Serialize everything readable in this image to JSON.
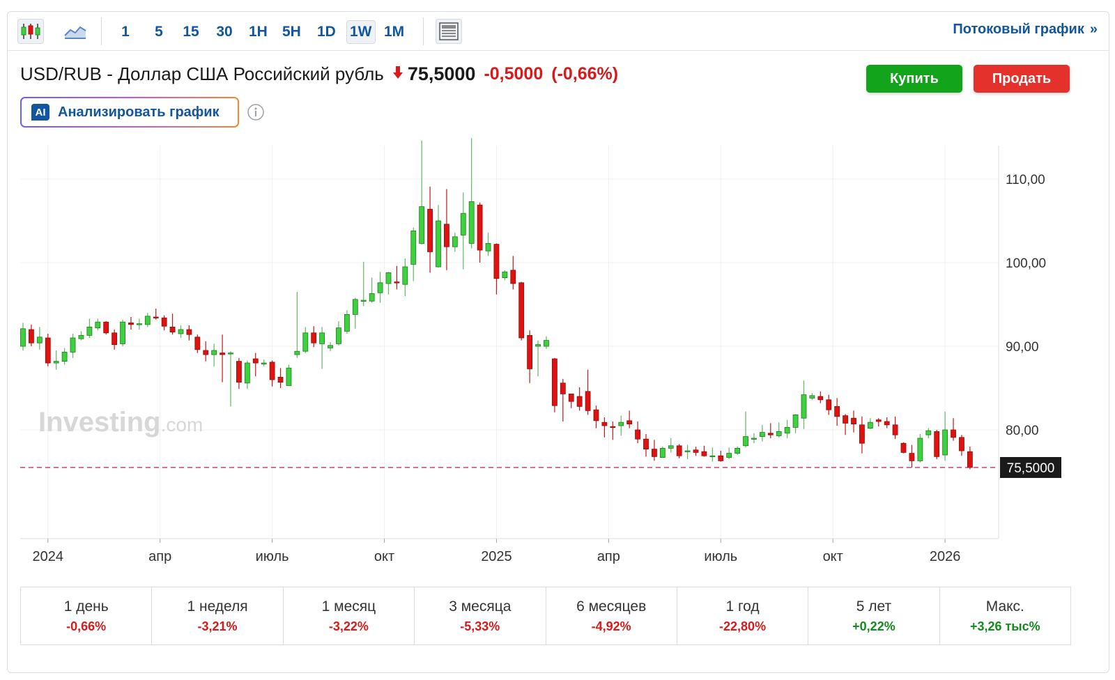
{
  "toolbar": {
    "chart_type_icons": [
      "candlestick-icon",
      "area-chart-icon"
    ],
    "intervals": [
      "1",
      "5",
      "15",
      "30",
      "1H",
      "5H",
      "1D",
      "1W",
      "1M"
    ],
    "active_interval": "1W",
    "layout_icon": "layout-icon",
    "streaming_label": "Потоковый график",
    "streaming_arrow": "»"
  },
  "header": {
    "title": "USD/RUB - Доллар США Российский рубль",
    "last_price": "75,5000",
    "change": "-0,5000",
    "change_pct": "(-0,66%)",
    "buy_label": "Купить",
    "sell_label": "Продать",
    "ai_badge": "AI",
    "ai_label": "Анализировать график",
    "colors": {
      "negative": "#d91a1a",
      "positive": "#138a1d",
      "buy": "#12a51c",
      "sell": "#e5312b",
      "link": "#1256a0"
    }
  },
  "chart_data": {
    "type": "candlestick",
    "interval": "1W",
    "watermark": "Investing",
    "watermark_suffix": ".com",
    "current_price_label": "75,5000",
    "current_price": 75.5,
    "ylim": [
      67.0,
      114.0
    ],
    "y_ticks": [
      {
        "value": 110,
        "label": "110,00"
      },
      {
        "value": 100,
        "label": "100,00"
      },
      {
        "value": 90,
        "label": "90,00"
      },
      {
        "value": 80,
        "label": "80,00"
      }
    ],
    "x_ticks": [
      {
        "idx": 3,
        "label": "2024"
      },
      {
        "idx": 16.5,
        "label": "апр"
      },
      {
        "idx": 30,
        "label": "июль"
      },
      {
        "idx": 43.5,
        "label": "окт"
      },
      {
        "idx": 57,
        "label": "2025"
      },
      {
        "idx": 70.5,
        "label": "апр"
      },
      {
        "idx": 84,
        "label": "июль"
      },
      {
        "idx": 97.5,
        "label": "окт"
      },
      {
        "idx": 111,
        "label": "2026"
      }
    ],
    "colors": {
      "up": "#3dd13d",
      "down": "#e0120f",
      "up_wick": "#5fb85f",
      "down_wick": "#c41616"
    },
    "candles": [
      [
        90.0,
        92.1,
        92.8,
        89.5
      ],
      [
        92.0,
        90.4,
        92.6,
        90.0
      ],
      [
        90.4,
        91.1,
        92.3,
        89.6
      ],
      [
        91.0,
        88.0,
        91.5,
        87.6
      ],
      [
        88.0,
        88.2,
        89.5,
        87.2
      ],
      [
        88.2,
        89.3,
        89.8,
        87.8
      ],
      [
        89.3,
        91.0,
        91.5,
        88.6
      ],
      [
        90.9,
        91.3,
        91.8,
        90.7
      ],
      [
        91.3,
        92.3,
        93.3,
        91.0
      ],
      [
        92.2,
        92.9,
        93.3,
        91.9
      ],
      [
        92.9,
        91.6,
        93.0,
        91.4
      ],
      [
        91.6,
        90.2,
        92.0,
        89.6
      ],
      [
        90.3,
        92.9,
        93.2,
        90.0
      ],
      [
        92.8,
        92.6,
        93.5,
        92.0
      ],
      [
        92.6,
        92.7,
        93.3,
        92.0
      ],
      [
        92.6,
        93.6,
        94.0,
        92.3
      ],
      [
        93.5,
        93.4,
        94.5,
        93.2
      ],
      [
        93.4,
        92.4,
        93.7,
        91.9
      ],
      [
        92.3,
        91.7,
        93.9,
        91.4
      ],
      [
        91.5,
        92.0,
        92.5,
        91.0
      ],
      [
        92.0,
        91.4,
        92.5,
        90.7
      ],
      [
        91.1,
        89.6,
        91.4,
        89.2
      ],
      [
        89.5,
        89.0,
        90.6,
        88.2
      ],
      [
        89.0,
        89.5,
        90.3,
        87.6
      ],
      [
        89.2,
        89.0,
        91.4,
        85.7
      ],
      [
        89.1,
        89.2,
        89.4,
        82.8
      ],
      [
        88.2,
        85.7,
        88.6,
        84.9
      ],
      [
        85.6,
        88.0,
        88.3,
        84.9
      ],
      [
        88.5,
        88.0,
        89.2,
        86.4
      ],
      [
        88.0,
        88.0,
        88.4,
        87.6
      ],
      [
        88.1,
        86.0,
        88.3,
        85.2
      ],
      [
        86.3,
        85.7,
        87.4,
        85.0
      ],
      [
        85.3,
        87.4,
        87.8,
        85.3
      ],
      [
        89.0,
        89.4,
        96.5,
        88.6
      ],
      [
        89.4,
        91.6,
        92.3,
        89.2
      ],
      [
        91.6,
        90.4,
        92.4,
        89.9
      ],
      [
        90.3,
        91.6,
        92.3,
        87.3
      ],
      [
        89.8,
        90.1,
        90.5,
        89.4
      ],
      [
        90.3,
        92.2,
        93.0,
        90.1
      ],
      [
        91.8,
        93.8,
        94.3,
        91.5
      ],
      [
        93.8,
        95.6,
        95.8,
        92.1
      ],
      [
        95.4,
        95.5,
        100.1,
        94.8
      ],
      [
        95.4,
        96.3,
        98.2,
        95.2
      ],
      [
        96.4,
        97.6,
        98.9,
        95.2
      ],
      [
        97.5,
        98.8,
        98.9,
        96.2
      ],
      [
        97.7,
        97.6,
        99.6,
        96.8
      ],
      [
        97.4,
        99.5,
        100.5,
        96.0
      ],
      [
        99.8,
        103.8,
        104.2,
        97.8
      ],
      [
        102.3,
        106.7,
        114.6,
        102.2
      ],
      [
        106.4,
        101.3,
        109.1,
        98.8
      ],
      [
        99.5,
        105.0,
        106.9,
        99.4
      ],
      [
        104.6,
        101.9,
        108.8,
        99.1
      ],
      [
        101.9,
        103.1,
        103.6,
        101.3
      ],
      [
        103.3,
        105.9,
        108.4,
        99.2
      ],
      [
        102.3,
        107.3,
        114.9,
        101.7
      ],
      [
        106.9,
        101.5,
        107.2,
        100.0
      ],
      [
        101.4,
        102.3,
        103.6,
        100.8
      ],
      [
        102.2,
        98.1,
        102.3,
        96.2
      ],
      [
        98.2,
        98.9,
        99.1,
        97.9
      ],
      [
        99.1,
        97.5,
        100.8,
        96.8
      ],
      [
        97.6,
        91.0,
        97.7,
        90.7
      ],
      [
        91.3,
        87.3,
        91.9,
        85.6
      ],
      [
        90.0,
        90.2,
        90.7,
        86.4
      ],
      [
        90.0,
        90.7,
        91.2,
        89.7
      ],
      [
        88.5,
        82.9,
        88.6,
        82.1
      ],
      [
        85.6,
        84.3,
        86.1,
        81.0
      ],
      [
        84.3,
        83.4,
        84.3,
        82.6
      ],
      [
        84.0,
        82.8,
        85.1,
        82.3
      ],
      [
        84.6,
        82.3,
        87.2,
        81.8
      ],
      [
        82.4,
        81.1,
        82.9,
        80.2
      ],
      [
        80.9,
        80.5,
        81.5,
        79.1
      ],
      [
        80.4,
        80.3,
        81.0,
        78.8
      ],
      [
        80.5,
        80.9,
        81.7,
        79.3
      ],
      [
        81.1,
        80.7,
        82.3,
        80.2
      ],
      [
        80.0,
        78.9,
        81.0,
        78.4
      ],
      [
        78.9,
        77.7,
        79.5,
        76.8
      ],
      [
        77.7,
        76.8,
        78.8,
        76.3
      ],
      [
        76.7,
        77.8,
        78.0,
        77.0
      ],
      [
        77.8,
        78.1,
        79.0,
        77.3
      ],
      [
        78.1,
        76.9,
        78.3,
        76.6
      ],
      [
        77.4,
        77.5,
        78.2,
        76.5
      ],
      [
        77.6,
        77.3,
        78.0,
        76.9
      ],
      [
        77.4,
        76.9,
        78.1,
        76.8
      ],
      [
        76.8,
        76.9,
        77.9,
        76.2
      ],
      [
        76.9,
        76.3,
        77.5,
        76.2
      ],
      [
        76.7,
        77.2,
        77.9,
        76.5
      ],
      [
        77.2,
        77.8,
        78.0,
        77.0
      ],
      [
        78.1,
        79.2,
        82.2,
        77.9
      ],
      [
        79.0,
        79.0,
        79.6,
        78.4
      ],
      [
        79.2,
        79.7,
        80.6,
        78.6
      ],
      [
        79.6,
        79.4,
        80.8,
        79.0
      ],
      [
        79.3,
        79.8,
        80.9,
        79.1
      ],
      [
        79.6,
        80.3,
        81.2,
        79.0
      ],
      [
        80.3,
        81.8,
        81.9,
        79.6
      ],
      [
        81.4,
        84.2,
        85.9,
        80.1
      ],
      [
        83.8,
        84.1,
        84.4,
        83.6
      ],
      [
        84.0,
        83.6,
        84.6,
        83.2
      ],
      [
        83.6,
        82.4,
        84.2,
        81.8
      ],
      [
        82.8,
        81.6,
        83.8,
        80.5
      ],
      [
        81.7,
        80.8,
        81.9,
        79.4
      ],
      [
        81.4,
        80.7,
        82.3,
        79.7
      ],
      [
        80.6,
        78.4,
        81.6,
        77.2
      ],
      [
        80.2,
        80.9,
        81.4,
        80.1
      ],
      [
        81.2,
        81.0,
        81.4,
        80.4
      ],
      [
        81.0,
        80.6,
        81.5,
        80.2
      ],
      [
        80.6,
        79.4,
        81.6,
        78.9
      ],
      [
        78.4,
        77.3,
        78.5,
        77.2
      ],
      [
        77.2,
        76.3,
        78.2,
        75.5
      ],
      [
        76.3,
        79.0,
        79.5,
        76.1
      ],
      [
        79.4,
        79.9,
        80.2,
        79.0
      ],
      [
        79.8,
        76.8,
        80.0,
        76.5
      ],
      [
        77.0,
        80.0,
        82.2,
        76.3
      ],
      [
        80.0,
        79.1,
        81.4,
        78.7
      ],
      [
        79.1,
        77.5,
        79.4,
        76.9
      ],
      [
        77.4,
        75.5,
        78.0,
        75.3
      ]
    ]
  },
  "performance": [
    {
      "label": "1 день",
      "value": "-0,66%",
      "sign": "neg"
    },
    {
      "label": "1 неделя",
      "value": "-3,21%",
      "sign": "neg"
    },
    {
      "label": "1 месяц",
      "value": "-3,22%",
      "sign": "neg"
    },
    {
      "label": "3 месяца",
      "value": "-5,33%",
      "sign": "neg"
    },
    {
      "label": "6 месяцев",
      "value": "-4,92%",
      "sign": "neg"
    },
    {
      "label": "1 год",
      "value": "-22,80%",
      "sign": "neg"
    },
    {
      "label": "5 лет",
      "value": "+0,22%",
      "sign": "pos"
    },
    {
      "label": "Макс.",
      "value": "+3,26 тыс%",
      "sign": "pos"
    }
  ]
}
